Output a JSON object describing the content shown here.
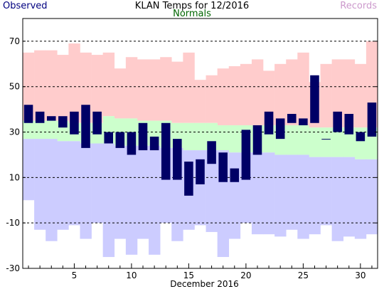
{
  "colors": {
    "observed": "#000066",
    "normal_band": "#ccffcc",
    "record_high_band": "#ffcccc",
    "record_low_band": "#ccccff",
    "observed_legend_text": "#000080",
    "normals_legend_text": "#006600",
    "records_legend_text": "#cc99cc"
  },
  "chart_data": {
    "type": "bar",
    "title": "KLAN Temps for 12/2016",
    "xlabel": "December 2016",
    "ylabel": "",
    "legend": [
      "Observed",
      "Normals",
      "Records"
    ],
    "legend_placement": "top",
    "grid": "dashed horizontal lines at labeled y ticks",
    "ylim": [
      -30,
      80
    ],
    "yticks": [
      -30,
      -10,
      10,
      30,
      50,
      70
    ],
    "xlim": [
      0.5,
      31.5
    ],
    "xticks": [
      5,
      10,
      15,
      20,
      25,
      30
    ],
    "days": [
      1,
      2,
      3,
      4,
      5,
      6,
      7,
      8,
      9,
      10,
      11,
      12,
      13,
      14,
      15,
      16,
      17,
      18,
      19,
      20,
      21,
      22,
      23,
      24,
      25,
      26,
      27,
      28,
      29,
      30,
      31
    ],
    "series": [
      {
        "name": "Observed",
        "high": [
          42,
          39,
          37,
          37,
          39,
          42,
          39,
          30,
          30,
          30,
          34,
          28,
          34,
          27,
          17,
          18,
          26,
          21,
          14,
          31,
          33,
          39,
          36,
          38,
          36,
          55,
          27,
          39,
          38,
          30,
          43
        ],
        "low": [
          34,
          34,
          35,
          32,
          29,
          23,
          29,
          25,
          23,
          20,
          22,
          22,
          9,
          9,
          2,
          7,
          16,
          8,
          8,
          9,
          20,
          29,
          27,
          34,
          33,
          34,
          27,
          30,
          29,
          26,
          28
        ]
      },
      {
        "name": "Normal High",
        "values": [
          35,
          35,
          35,
          35,
          34,
          34,
          34,
          37,
          36,
          36,
          35,
          35,
          35,
          34,
          34,
          34,
          34,
          33,
          33,
          33,
          33,
          33,
          33,
          33,
          33,
          32,
          32,
          32,
          32,
          32,
          32
        ]
      },
      {
        "name": "Normal Low",
        "values": [
          27,
          27,
          27,
          26,
          26,
          25,
          25,
          25,
          24,
          24,
          24,
          24,
          23,
          23,
          22,
          22,
          22,
          22,
          21,
          21,
          21,
          21,
          20,
          20,
          20,
          19,
          19,
          19,
          19,
          18,
          18
        ]
      },
      {
        "name": "Record High",
        "values": [
          65,
          66,
          66,
          64,
          69,
          65,
          64,
          65,
          58,
          63,
          62,
          62,
          63,
          61,
          65,
          53,
          55,
          58,
          59,
          60,
          62,
          57,
          60,
          62,
          65,
          52,
          60,
          62,
          62,
          60,
          70
        ]
      },
      {
        "name": "Record Low",
        "values": [
          0,
          -13,
          -18,
          -13,
          -11,
          -17,
          -10,
          -25,
          -17,
          -24,
          -17,
          -24,
          -10,
          -18,
          -13,
          -11,
          -14,
          -25,
          -17,
          -10,
          -15,
          -15,
          -16,
          -13,
          -17,
          -15,
          -11,
          -18,
          -16,
          -17,
          -15
        ]
      }
    ]
  }
}
